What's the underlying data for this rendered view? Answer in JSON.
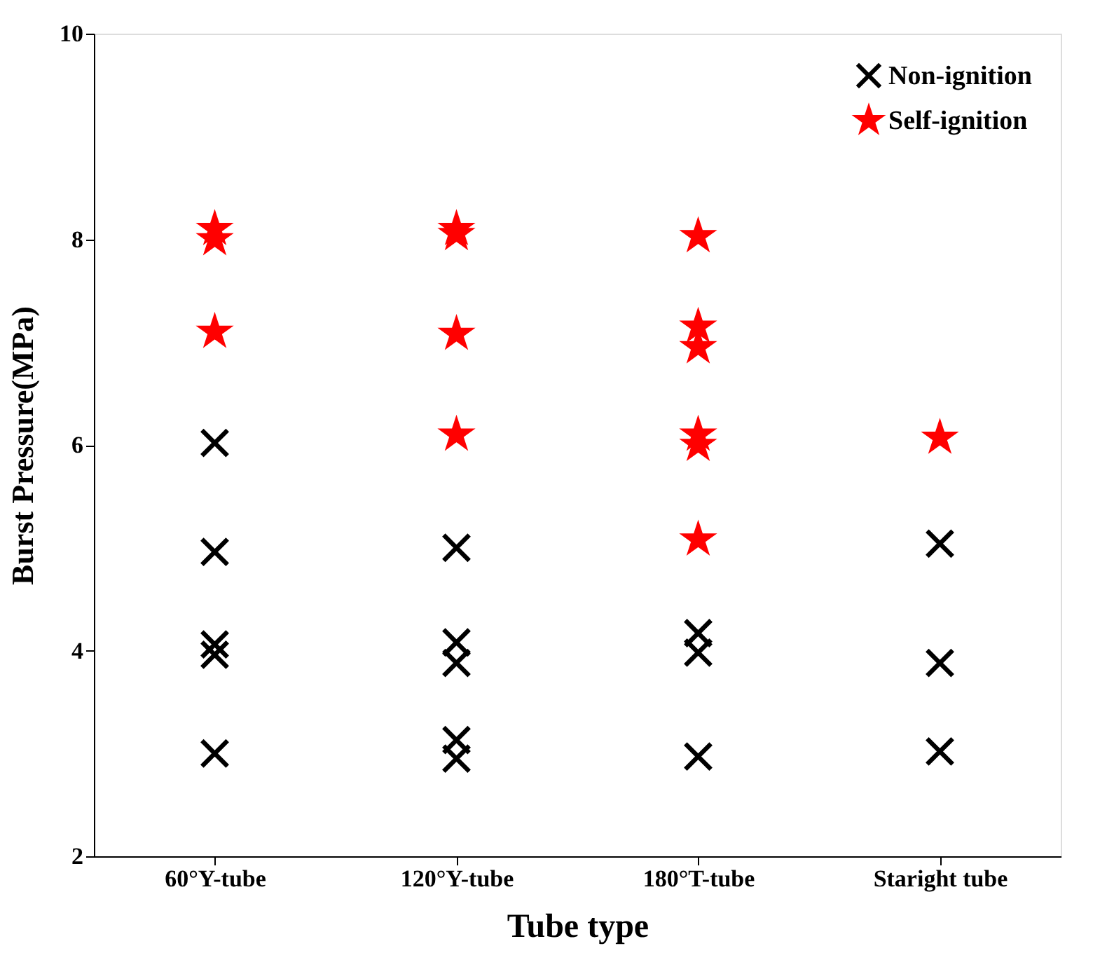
{
  "chart_data": {
    "type": "scatter",
    "xlabel": "Tube type",
    "ylabel": "Burst Pressure(MPa)",
    "categories": [
      "60°Y-tube",
      "120°Y-tube",
      "180°T-tube",
      "Staright tube"
    ],
    "ylim": [
      2,
      10
    ],
    "yticks": [
      2,
      4,
      6,
      8,
      10
    ],
    "grid": false,
    "legend": "top right",
    "series": [
      {
        "name": "Non-ignition",
        "color": "#000000",
        "marker": "cross",
        "x": [
          "60°Y-tube",
          "60°Y-tube",
          "60°Y-tube",
          "60°Y-tube",
          "60°Y-tube",
          "120°Y-tube",
          "120°Y-tube",
          "120°Y-tube",
          "120°Y-tube",
          "120°Y-tube",
          "180°T-tube",
          "180°T-tube",
          "180°T-tube",
          "Staright tube",
          "Staright tube",
          "Staright tube"
        ],
        "values": [
          6.02,
          4.96,
          4.06,
          3.96,
          3.0,
          5.0,
          4.08,
          3.88,
          3.13,
          2.95,
          4.17,
          3.98,
          2.97,
          5.04,
          3.88,
          3.02
        ]
      },
      {
        "name": "Self-ignition",
        "color": "#ff0000",
        "marker": "star",
        "x": [
          "60°Y-tube",
          "60°Y-tube",
          "60°Y-tube",
          "120°Y-tube",
          "120°Y-tube",
          "120°Y-tube",
          "120°Y-tube",
          "180°T-tube",
          "180°T-tube",
          "180°T-tube",
          "180°T-tube",
          "180°T-tube",
          "180°T-tube",
          "Staright tube"
        ],
        "values": [
          8.1,
          8.0,
          7.1,
          8.1,
          8.05,
          7.08,
          6.1,
          8.03,
          7.15,
          6.95,
          6.1,
          6.0,
          5.08,
          6.07
        ]
      }
    ]
  }
}
